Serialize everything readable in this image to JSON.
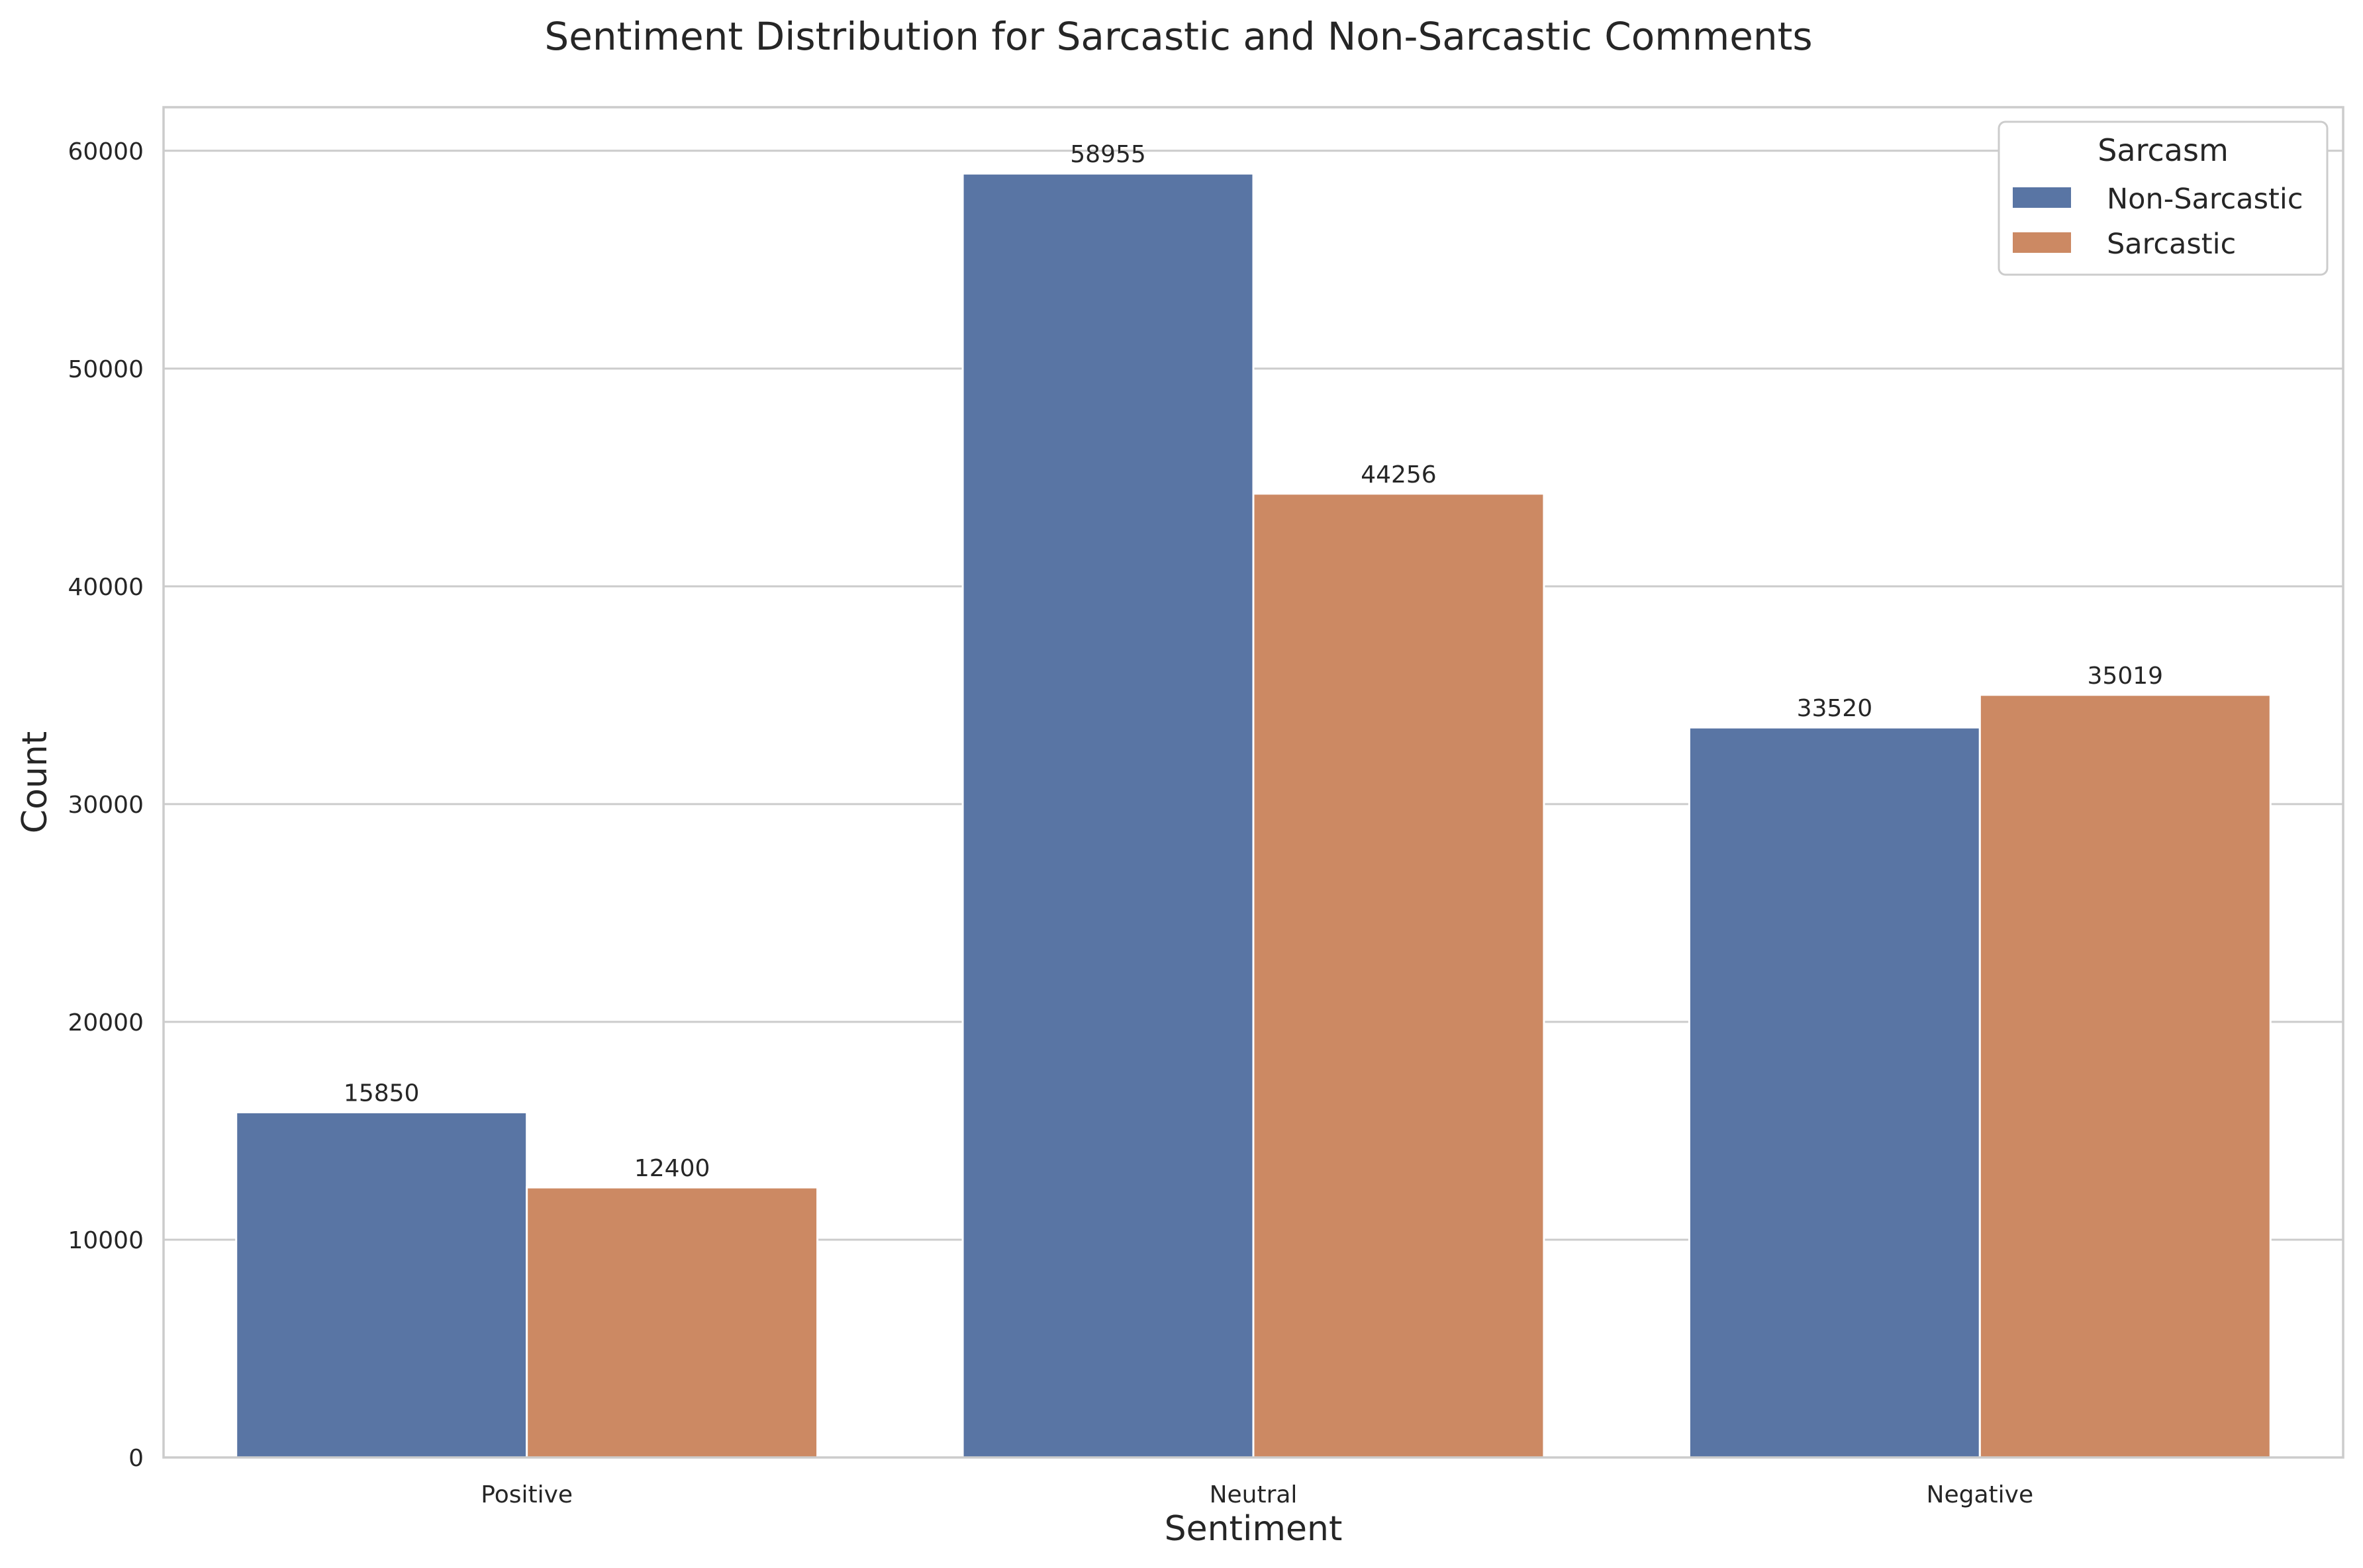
{
  "chart_data": {
    "type": "bar",
    "title": "Sentiment Distribution for Sarcastic and Non-Sarcastic Comments",
    "xlabel": "Sentiment",
    "ylabel": "Count",
    "categories": [
      "Positive",
      "Neutral",
      "Negative"
    ],
    "series": [
      {
        "name": "Non-Sarcastic",
        "values": [
          15850,
          58955,
          33520
        ],
        "color": "#5975a4"
      },
      {
        "name": "Sarcastic",
        "values": [
          12400,
          44256,
          35019
        ],
        "color": "#cc8963"
      }
    ],
    "ylim": [
      0,
      62000
    ],
    "yticks": [
      0,
      10000,
      20000,
      30000,
      40000,
      50000,
      60000
    ],
    "grid": true,
    "legend": {
      "title": "Sarcasm",
      "position": "top-right"
    }
  }
}
